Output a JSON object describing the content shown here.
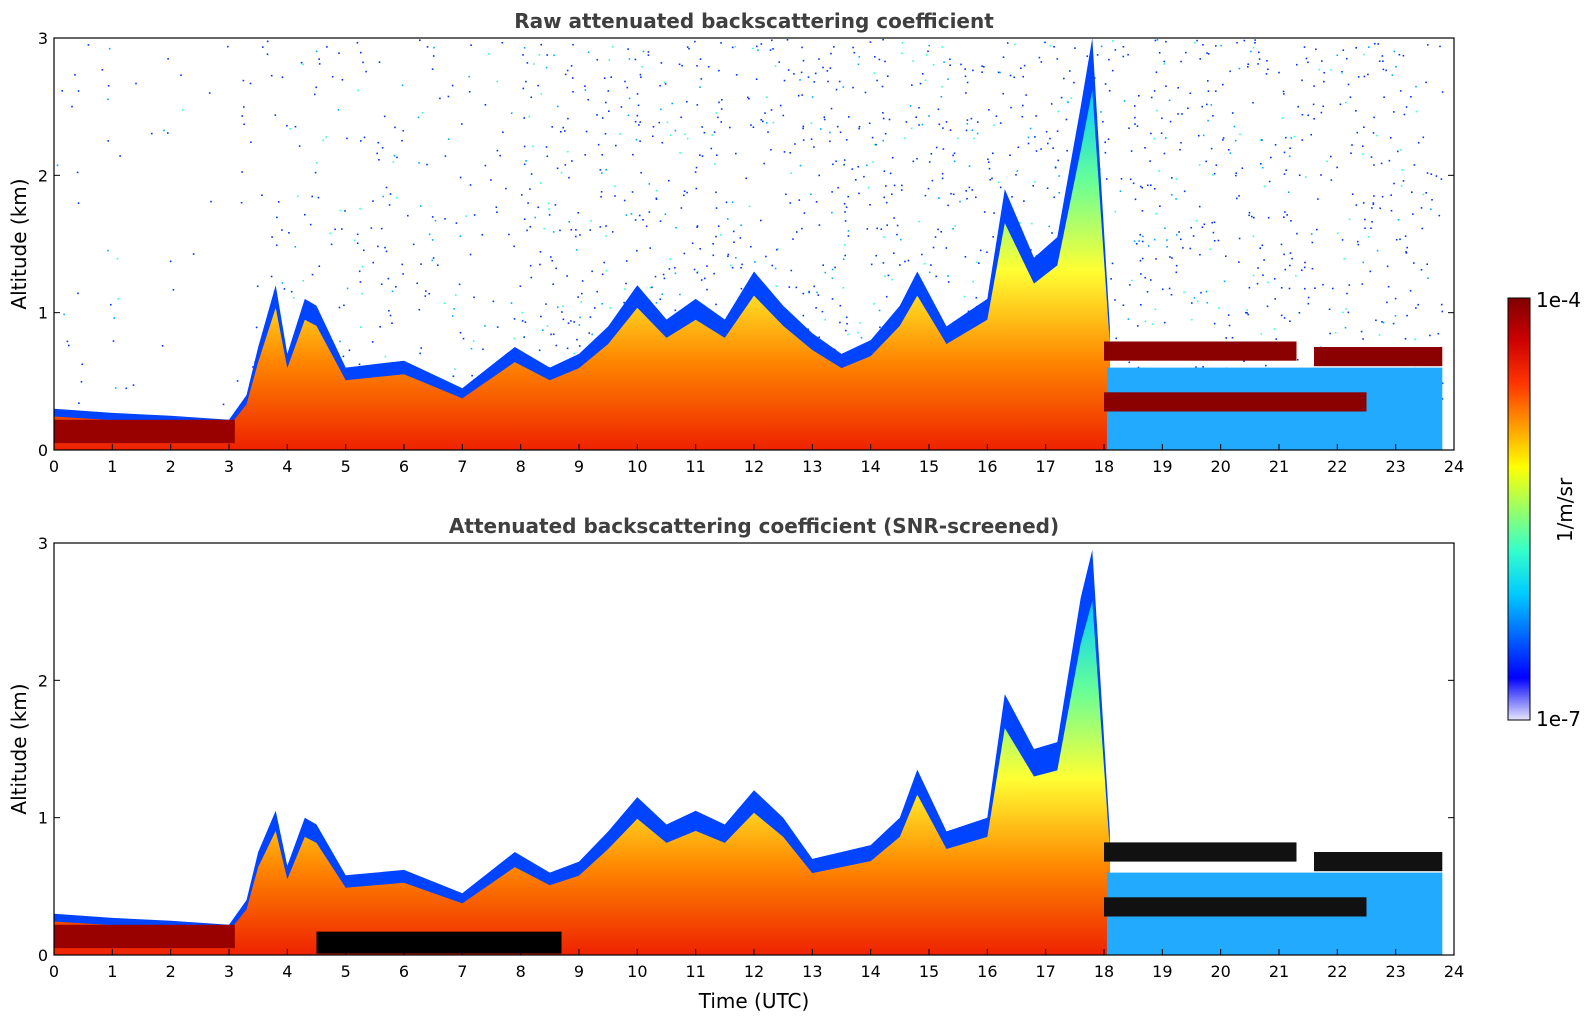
{
  "chart_data": [
    {
      "type": "heatmap",
      "title": "Raw attenuated backscattering coefficient",
      "xlabel": "",
      "ylabel": "Altitude (km)",
      "xlim": [
        0,
        24
      ],
      "ylim": [
        0,
        3
      ],
      "x_ticks": [
        "0",
        "1",
        "2",
        "3",
        "4",
        "5",
        "6",
        "7",
        "8",
        "9",
        "10",
        "11",
        "12",
        "13",
        "14",
        "15",
        "16",
        "17",
        "18",
        "19",
        "20",
        "21",
        "22",
        "23",
        "24"
      ],
      "y_ticks": [
        "0",
        "1",
        "2",
        "3"
      ],
      "layer_top_km": {
        "time_utc": [
          0,
          1,
          2,
          3,
          3.3,
          3.5,
          3.8,
          4.0,
          4.3,
          4.5,
          5,
          6,
          7,
          7.9,
          8.5,
          9,
          9.5,
          10,
          10.5,
          11,
          11.5,
          12,
          12.5,
          13,
          13.5,
          14,
          14.5,
          14.8,
          15.3,
          16,
          16.3,
          16.8,
          17.2,
          17.6,
          17.8,
          18.1
        ],
        "altitude_km": [
          0.3,
          0.27,
          0.25,
          0.22,
          0.4,
          0.75,
          1.2,
          0.7,
          1.1,
          1.05,
          0.6,
          0.65,
          0.45,
          0.75,
          0.6,
          0.7,
          0.9,
          1.2,
          0.95,
          1.1,
          0.95,
          1.3,
          1.05,
          0.85,
          0.7,
          0.8,
          1.05,
          1.3,
          0.9,
          1.1,
          1.9,
          1.4,
          1.55,
          2.5,
          3.0,
          0.9
        ]
      },
      "residual_layers": [
        {
          "label": "",
          "start_utc": 18.0,
          "end_utc": 22.5,
          "altitude_km": 0.35
        },
        {
          "label": "",
          "start_utc": 18.0,
          "end_utc": 21.3,
          "altitude_km": 0.72
        },
        {
          "label": "",
          "start_utc": 21.6,
          "end_utc": 23.8,
          "altitude_km": 0.68
        }
      ],
      "colormap": "jet",
      "color_scale": "log"
    },
    {
      "type": "heatmap",
      "title": "Attenuated backscattering coefficient (SNR-screened)",
      "xlabel": "Time (UTC)",
      "ylabel": "Altitude (km)",
      "xlim": [
        0,
        24
      ],
      "ylim": [
        0,
        3
      ],
      "x_ticks": [
        "0",
        "1",
        "2",
        "3",
        "4",
        "5",
        "6",
        "7",
        "8",
        "9",
        "10",
        "11",
        "12",
        "13",
        "14",
        "15",
        "16",
        "17",
        "18",
        "19",
        "20",
        "21",
        "22",
        "23",
        "24"
      ],
      "y_ticks": [
        "0",
        "1",
        "2",
        "3"
      ],
      "layer_top_km": {
        "time_utc": [
          0,
          1,
          2,
          3,
          3.3,
          3.5,
          3.8,
          4.0,
          4.3,
          4.5,
          5,
          6,
          7,
          7.9,
          8.5,
          9,
          9.5,
          10,
          10.5,
          11,
          11.5,
          12,
          12.5,
          13,
          13.5,
          14,
          14.5,
          14.8,
          15.3,
          16,
          16.3,
          16.8,
          17.2,
          17.6,
          17.8,
          18.1
        ],
        "altitude_km": [
          0.3,
          0.27,
          0.25,
          0.22,
          0.4,
          0.75,
          1.05,
          0.65,
          1.0,
          0.95,
          0.58,
          0.62,
          0.45,
          0.75,
          0.6,
          0.68,
          0.9,
          1.15,
          0.95,
          1.05,
          0.95,
          1.2,
          1.0,
          0.7,
          0.75,
          0.8,
          1.0,
          1.35,
          0.9,
          1.0,
          1.9,
          1.5,
          1.55,
          2.6,
          2.95,
          0.9
        ]
      },
      "residual_layers": [
        {
          "label": "",
          "start_utc": 18.0,
          "end_utc": 22.5,
          "altitude_km": 0.35
        },
        {
          "label": "",
          "start_utc": 18.0,
          "end_utc": 21.3,
          "altitude_km": 0.75
        },
        {
          "label": "",
          "start_utc": 21.6,
          "end_utc": 23.8,
          "altitude_km": 0.68
        }
      ],
      "colormap": "jet",
      "color_scale": "log"
    }
  ],
  "colorbar": {
    "max_label": "1e-4",
    "min_label": "1e-7",
    "unit_label": "1/m/sr",
    "colors": [
      "#e6e6fa",
      "#0000ff",
      "#0066ff",
      "#00ccff",
      "#33ffcc",
      "#99ff66",
      "#ffff00",
      "#ff9900",
      "#ff3300",
      "#cc0000",
      "#800000"
    ]
  }
}
